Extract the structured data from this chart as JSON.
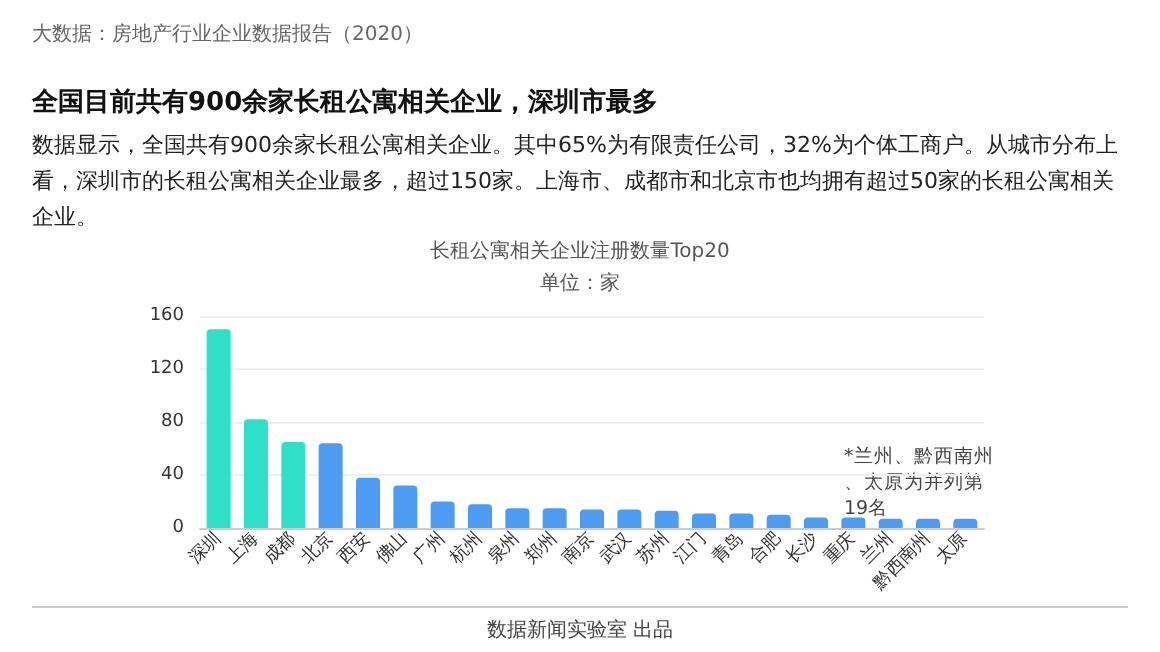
{
  "chart_data": {
    "type": "bar",
    "title": "长租公寓相关企业注册数量Top20",
    "subtitle": "单位：家",
    "annotations": [
      "大数据：房地产行业企业数据报告（2020）",
      "全国目前共有900余家长租公寓相关企业，深圳市最多",
      "数据显示，全国共有900余家长租公寓相关企业。其中65%为有限责任公司，32%为个体工商户。从城市分布上看，深圳市的长租公寓相关企业最多，超过150家。上海市、成都市和北京市也均拥有超过50家的长租公寓相关企业。",
      "*兰州、黔西南州、太原为并列第19名",
      "数据新闻实验室 出品"
    ],
    "categories": [
      "深圳",
      "上海",
      "成都",
      "北京",
      "西安",
      "佛山",
      "广州",
      "杭州",
      "泉州",
      "郑州",
      "南京",
      "武汉",
      "苏州",
      "江门",
      "青岛",
      "合肥",
      "长沙",
      "重庆",
      "兰州",
      "黔西南州",
      "太原"
    ],
    "values": [
      150,
      82,
      65,
      64,
      38,
      32,
      20,
      18,
      15,
      15,
      14,
      14,
      13,
      11,
      11,
      10,
      8,
      8,
      7,
      7,
      7
    ],
    "colors": [
      "#2ee0c8",
      "#2ee0c8",
      "#2ee0c8",
      "#4b9cf2",
      "#4b9cf2",
      "#4b9cf2",
      "#4b9cf2",
      "#4b9cf2",
      "#4b9cf2",
      "#4b9cf2",
      "#4b9cf2",
      "#4b9cf2",
      "#4b9cf2",
      "#4b9cf2",
      "#4b9cf2",
      "#4b9cf2",
      "#4b9cf2",
      "#4b9cf2",
      "#4b9cf2",
      "#4b9cf2",
      "#4b9cf2"
    ],
    "ylim": [
      0,
      160
    ],
    "yticks": [
      0,
      40,
      80,
      120,
      160
    ],
    "grid": "y"
  }
}
